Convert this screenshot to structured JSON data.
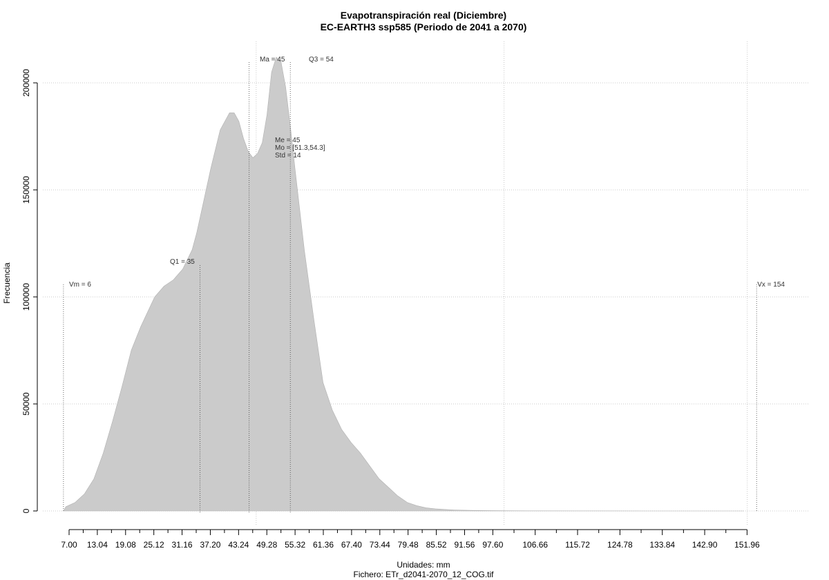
{
  "chart_data": {
    "type": "area",
    "title": "Evapotranspiración real (Diciembre)",
    "subtitle": "EC-EARTH3 ssp585 (Periodo de 2041 a 2070)",
    "xlabel": "Unidades: mm",
    "file_label": "Fichero: ETr_d2041-2070_12_COG.tif",
    "ylabel": "Frecuencia",
    "xlim": [
      5,
      157
    ],
    "ylim": [
      0,
      210000
    ],
    "y_ticks": [
      0,
      50000,
      100000,
      150000,
      200000
    ],
    "x_ticks": [
      "7.00",
      "13.04",
      "19.08",
      "25.12",
      "31.16",
      "37.20",
      "43.24",
      "49.28",
      "55.32",
      "61.36",
      "67.40",
      "73.44",
      "79.48",
      "85.52",
      "91.56",
      "97.60",
      "106.66",
      "115.72",
      "124.78",
      "133.84",
      "142.90",
      "151.96"
    ],
    "grid": true,
    "fill_color": "#cbcbcb",
    "stats": {
      "vm_label": "Vm = 6",
      "q1_label": "Q1 = 35",
      "ma_label": "Ma = 45",
      "q3_label": "Q3 = 54",
      "vx_label": "Vx = 154",
      "me_label": "Me = 45",
      "mo_label": "Mo = [51.3,54.3]",
      "std_label": "Std = 14"
    },
    "stat_lines": {
      "vm": 5.8,
      "q1": 35,
      "ma": 45.5,
      "q3": 54.3,
      "vx": 154
    },
    "x": [
      5.8,
      6.3,
      8.3,
      10.3,
      12.3,
      14.3,
      16.3,
      18.3,
      20.3,
      22.3,
      23.8,
      25.3,
      27.3,
      29.3,
      31.3,
      33.3,
      34.3,
      35.3,
      37.3,
      39.3,
      41.3,
      42.3,
      43.3,
      44.3,
      45.3,
      46.3,
      47.3,
      48.3,
      49.3,
      50.3,
      51.3,
      52.3,
      53.3,
      54.3,
      55.3,
      57.3,
      59.3,
      61.3,
      63.3,
      65.3,
      67.3,
      69.3,
      71.3,
      73.3,
      75.3,
      77.3,
      79.3,
      81.3,
      83.3,
      85.3,
      87.3,
      89.3,
      91.3,
      95.3,
      100.3,
      105.3,
      115.3,
      130.3,
      145.3,
      151.3
    ],
    "y": [
      0,
      2000,
      4000,
      8000,
      15000,
      27000,
      42000,
      58000,
      75000,
      86000,
      93000,
      100000,
      105000,
      108000,
      113000,
      122000,
      130000,
      140000,
      160000,
      178000,
      186000,
      186000,
      182000,
      174000,
      168000,
      165000,
      167000,
      172000,
      185000,
      205000,
      212000,
      210000,
      198000,
      180000,
      160000,
      122000,
      90000,
      60000,
      47000,
      38000,
      32000,
      27000,
      21000,
      15000,
      11000,
      7000,
      4000,
      2500,
      1500,
      1000,
      700,
      500,
      350,
      180,
      90,
      50,
      20,
      5,
      0,
      0
    ]
  }
}
